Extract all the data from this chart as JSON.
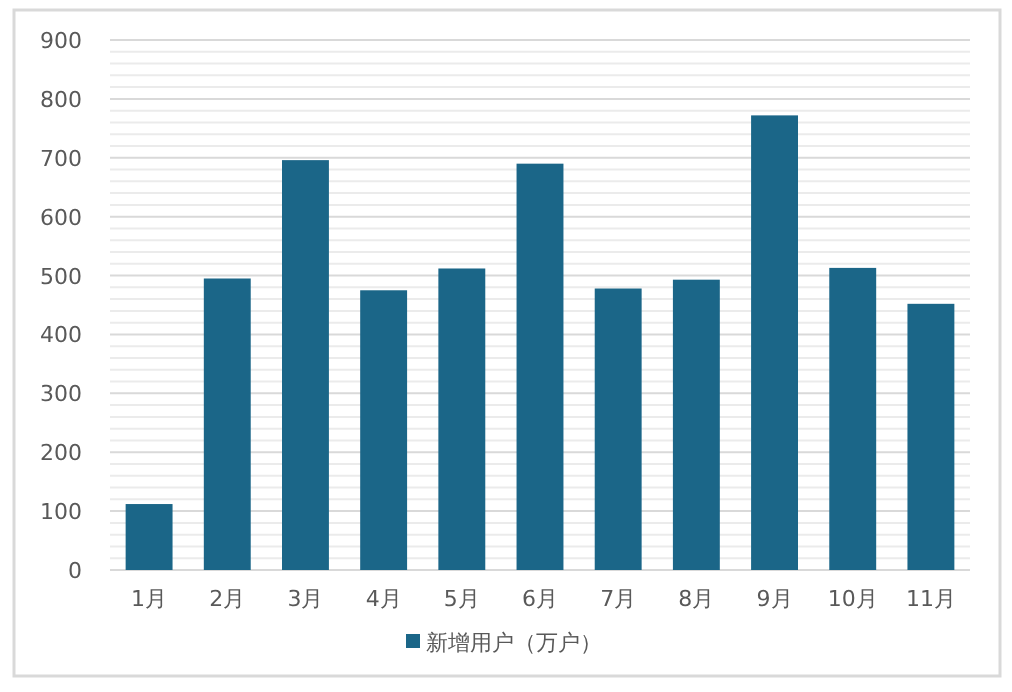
{
  "chart_data": {
    "type": "bar",
    "categories": [
      "1月",
      "2月",
      "3月",
      "4月",
      "5月",
      "6月",
      "7月",
      "8月",
      "9月",
      "10月",
      "11月"
    ],
    "series": [
      {
        "name": "新增用户（万户）",
        "color": "#1b6688",
        "values": [
          112,
          495,
          696,
          475,
          512,
          690,
          478,
          493,
          772,
          513,
          452
        ]
      }
    ],
    "ylim": [
      0,
      900
    ],
    "yticks": [
      0,
      100,
      200,
      300,
      400,
      500,
      600,
      700,
      800,
      900
    ],
    "grid": "y",
    "legend": "bottom"
  }
}
